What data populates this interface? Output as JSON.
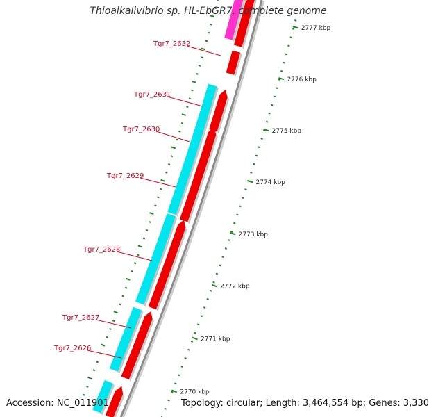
{
  "title": "Thioalkalivibrio sp. HL-EbGR7, complete genome",
  "accession": "Accession: NC_011901",
  "topology": "Topology: circular; Length: 3,464,554 bp; Genes: 3,330",
  "colors": {
    "background": "#ffffff",
    "backbone": "#8a8a8a",
    "cds_forward": "#ee0000",
    "cds_reverse": "#00e5ee",
    "rna": "#ff33cc",
    "other": "#ff9900",
    "gc_tick": "#1a8c1a",
    "label": "#e0001b"
  },
  "ticks": [
    {
      "label": "2777 kbp"
    },
    {
      "label": "2776 kbp"
    },
    {
      "label": "2775 kbp"
    },
    {
      "label": "2774 kbp"
    },
    {
      "label": "2773 kbp"
    },
    {
      "label": "2772 kbp"
    },
    {
      "label": "2771 kbp"
    },
    {
      "label": "2770 kbp"
    }
  ],
  "gene_labels": [
    {
      "name": "Tgr7_2632"
    },
    {
      "name": "Tgr7_2631"
    },
    {
      "name": "Tgr7_2630"
    },
    {
      "name": "Tgr7_2629"
    },
    {
      "name": "Tgr7_2628"
    },
    {
      "name": "Tgr7_2627"
    },
    {
      "name": "Tgr7_2626"
    }
  ]
}
